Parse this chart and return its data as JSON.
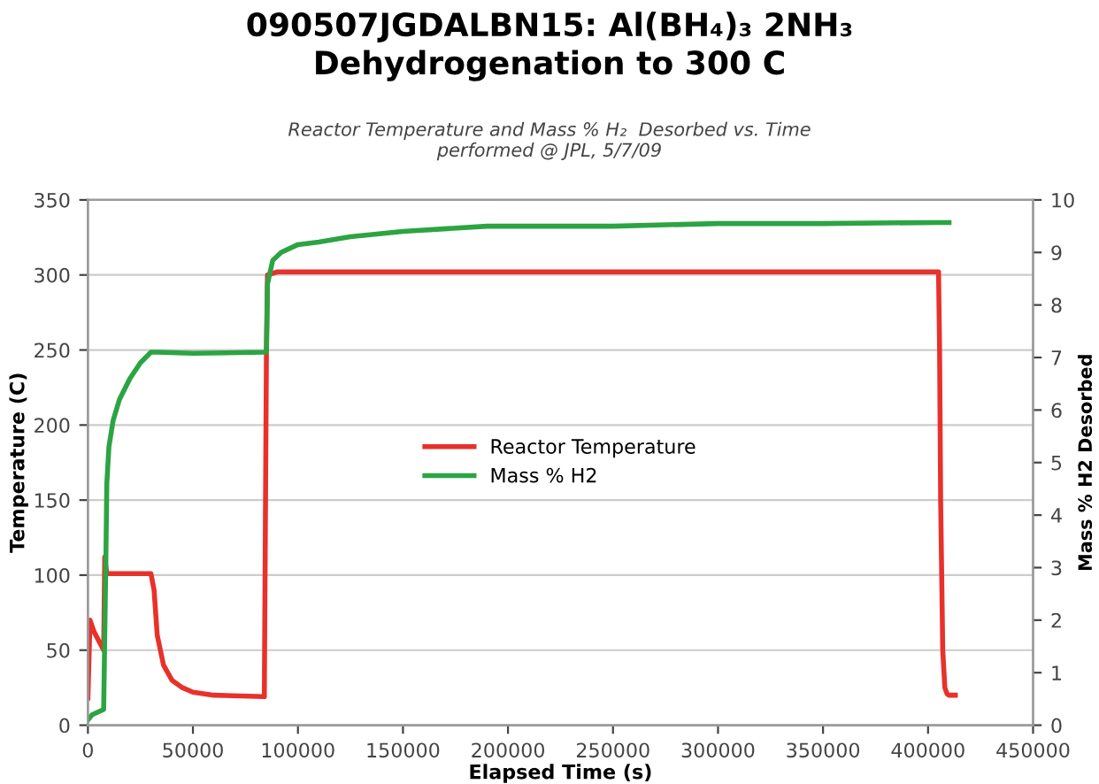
{
  "chart_data": {
    "type": "line",
    "title": "090507JGDALBN15: Al(BH₄)₃ 2NH₃\nDehydrogenation to 300 C",
    "subtitle": "Reactor Temperature and Mass % H₂  Desorbed vs. Time\nperformed @ JPL, 5/7/09",
    "xlabel": "Elapsed Time (s)",
    "ylabel": "Temperature (C)",
    "y2label": "Mass % H2 Desorbed",
    "series": [
      {
        "name": "Reactor Temperature",
        "color": "#e8312a",
        "x": [
          0,
          1000,
          3000,
          7500,
          8000,
          9000,
          20000,
          30000,
          31500,
          33000,
          36000,
          40000,
          45000,
          50000,
          60000,
          84000,
          85000,
          85500,
          90000,
          200000,
          405000,
          405500,
          406000,
          407000,
          408000,
          409000,
          410000,
          413000
        ],
        "values": [
          18,
          70,
          62,
          50,
          112,
          101,
          101,
          101,
          90,
          60,
          40,
          30,
          25,
          22,
          20,
          19,
          250,
          300,
          302,
          302,
          302,
          250,
          150,
          50,
          25,
          21,
          20,
          20
        ]
      },
      {
        "name": "Mass % H2",
        "color": "#2ca443",
        "axis": "y2",
        "x": [
          0,
          2000,
          7500,
          8500,
          9000,
          10000,
          12000,
          15000,
          20000,
          25000,
          30000,
          33000,
          50000,
          84000,
          85000,
          85500,
          88000,
          92000,
          100000,
          110000,
          125000,
          150000,
          190000,
          250000,
          300000,
          350000,
          405000,
          410000
        ],
        "values": [
          0.1,
          0.2,
          0.3,
          3.0,
          4.6,
          5.3,
          5.8,
          6.2,
          6.6,
          6.9,
          7.1,
          7.1,
          7.08,
          7.1,
          7.1,
          8.4,
          8.85,
          9.0,
          9.15,
          9.2,
          9.3,
          9.4,
          9.5,
          9.5,
          9.55,
          9.55,
          9.57,
          9.57
        ]
      }
    ],
    "xlim": [
      0,
      450000
    ],
    "xticks": [
      0,
      50000,
      100000,
      150000,
      200000,
      250000,
      300000,
      350000,
      400000,
      450000
    ],
    "ylim": [
      0,
      350
    ],
    "yticks": [
      0,
      50,
      100,
      150,
      200,
      250,
      300,
      350
    ],
    "y2lim": [
      0,
      10
    ],
    "y2ticks": [
      0,
      1,
      2,
      3,
      4,
      5,
      6,
      7,
      8,
      9,
      10
    ],
    "grid": "y",
    "legend": "center",
    "marker": "none",
    "line_style": "solid"
  }
}
